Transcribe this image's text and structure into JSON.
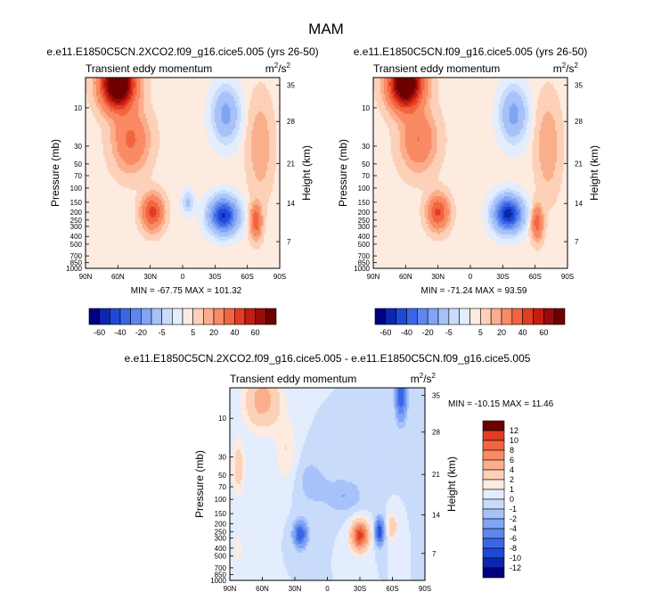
{
  "page_title": "MAM",
  "chart_data": [
    {
      "type": "heatmap",
      "title": "e.e11.E1850C5CN.2XCO2.f09_g16.cice5.005 (yrs 26-50)",
      "variable": "Transient eddy momentum",
      "units_base": "m",
      "units_exp1": "2",
      "units_mid": "/s",
      "units_exp2": "2",
      "xlabel": "",
      "ylabel": "Pressure (mb)",
      "ylabel_right": "Height (km)",
      "x_ticks": [
        "90N",
        "60N",
        "30N",
        "0",
        "30S",
        "60S",
        "90S"
      ],
      "y_ticks": [
        "10",
        "30",
        "50",
        "70",
        "100",
        "150",
        "200",
        "250",
        "300",
        "400",
        "500",
        "700",
        "850",
        "1000"
      ],
      "height_ticks": [
        "35",
        "28",
        "21",
        "14",
        "7"
      ],
      "min_label": "MIN = -67.75",
      "max_label": "MAX = 101.32",
      "min": -67.75,
      "max": 101.32,
      "blobs": [
        {
          "lat": -60,
          "p": 5,
          "amp": 95,
          "slat": 14,
          "slp": 0.65
        },
        {
          "lat": -48,
          "p": 25,
          "amp": 22,
          "slat": 15,
          "slp": 0.8
        },
        {
          "lat": -28,
          "p": 200,
          "amp": 34,
          "slat": 9,
          "slp": 0.45
        },
        {
          "lat": 38,
          "p": 220,
          "amp": -62,
          "slat": 12,
          "slp": 0.45
        },
        {
          "lat": 40,
          "p": 12,
          "amp": -24,
          "slat": 11,
          "slp": 0.7
        },
        {
          "lat": 68,
          "p": 260,
          "amp": 28,
          "slat": 5,
          "slp": 0.45
        },
        {
          "lat": 72,
          "p": 30,
          "amp": 10,
          "slat": 10,
          "slp": 1.2
        },
        {
          "lat": 5,
          "p": 150,
          "amp": -12,
          "slat": 5,
          "slp": 0.3
        }
      ]
    },
    {
      "type": "heatmap",
      "title": "e.e11.E1850C5CN.f09_g16.cice5.005 (yrs 26-50)",
      "variable": "Transient eddy momentum",
      "units_base": "m",
      "units_exp1": "2",
      "units_mid": "/s",
      "units_exp2": "2",
      "xlabel": "",
      "ylabel": "Pressure (mb)",
      "ylabel_right": "Height (km)",
      "x_ticks": [
        "90N",
        "60N",
        "30N",
        "0",
        "30S",
        "60S",
        "90S"
      ],
      "y_ticks": [
        "10",
        "30",
        "50",
        "70",
        "100",
        "150",
        "200",
        "250",
        "300",
        "400",
        "500",
        "700",
        "850",
        "1000"
      ],
      "height_ticks": [
        "35",
        "28",
        "21",
        "14",
        "7"
      ],
      "min_label": "MIN = -71.24",
      "max_label": "MAX = 93.59",
      "min": -71.24,
      "max": 93.59,
      "blobs": [
        {
          "lat": -60,
          "p": 5,
          "amp": 88,
          "slat": 14,
          "slp": 0.65
        },
        {
          "lat": -48,
          "p": 25,
          "amp": 20,
          "slat": 15,
          "slp": 0.8
        },
        {
          "lat": -30,
          "p": 200,
          "amp": 32,
          "slat": 9,
          "slp": 0.45
        },
        {
          "lat": 35,
          "p": 210,
          "amp": -66,
          "slat": 12,
          "slp": 0.45
        },
        {
          "lat": 40,
          "p": 12,
          "amp": -24,
          "slat": 11,
          "slp": 0.7
        },
        {
          "lat": 62,
          "p": 270,
          "amp": 26,
          "slat": 5,
          "slp": 0.45
        },
        {
          "lat": 72,
          "p": 30,
          "amp": 10,
          "slat": 10,
          "slp": 1.2
        }
      ]
    },
    {
      "type": "heatmap",
      "title": "e.e11.E1850C5CN.2XCO2.f09_g16.cice5.005 - e.e11.E1850C5CN.f09_g16.cice5.005",
      "variable": "Transient eddy momentum",
      "units_base": "m",
      "units_exp1": "2",
      "units_mid": "/s",
      "units_exp2": "2",
      "xlabel": "",
      "ylabel": "Pressure (mb)",
      "ylabel_right": "Height (km)",
      "x_ticks": [
        "90N",
        "60N",
        "30N",
        "0",
        "30S",
        "60S",
        "90S"
      ],
      "y_ticks": [
        "10",
        "30",
        "50",
        "70",
        "100",
        "150",
        "200",
        "250",
        "300",
        "400",
        "500",
        "700",
        "850",
        "1000"
      ],
      "height_ticks": [
        "35",
        "28",
        "21",
        "14",
        "7"
      ],
      "min_label": "MIN = -10.15",
      "max_label": "MAX = 11.46",
      "min": -10.15,
      "max": 11.46,
      "blobs": [
        {
          "lat": -60,
          "p": 6,
          "amp": 5,
          "slat": 16,
          "slp": 0.8
        },
        {
          "lat": -82,
          "p": 40,
          "amp": 3,
          "slat": 6,
          "slp": 0.8
        },
        {
          "lat": -38,
          "p": 25,
          "amp": 2,
          "slat": 10,
          "slp": 1.0
        },
        {
          "lat": -25,
          "p": 270,
          "amp": -8,
          "slat": 6,
          "slp": 0.35
        },
        {
          "lat": 30,
          "p": 280,
          "amp": 11,
          "slat": 8,
          "slp": 0.4
        },
        {
          "lat": 48,
          "p": 250,
          "amp": -9,
          "slat": 4,
          "slp": 0.35
        },
        {
          "lat": 60,
          "p": 220,
          "amp": 4,
          "slat": 4,
          "slp": 0.35
        },
        {
          "lat": 68,
          "p": 5,
          "amp": -8,
          "slat": 5,
          "slp": 0.7
        },
        {
          "lat": -82,
          "p": 400,
          "amp": 2,
          "slat": 4,
          "slp": 0.4
        },
        {
          "lat": 15,
          "p": 90,
          "amp": -2,
          "slat": 18,
          "slp": 0.5
        },
        {
          "lat": -15,
          "p": 60,
          "amp": -1.5,
          "slat": 15,
          "slp": 0.7
        }
      ]
    }
  ],
  "colorbar_top": {
    "labels": [
      "-60",
      "-40",
      "-20",
      "-5",
      "5",
      "20",
      "40",
      "60"
    ],
    "levels": [
      -70,
      -60,
      -50,
      -40,
      -30,
      -20,
      -10,
      -5,
      -1,
      1,
      5,
      10,
      20,
      30,
      40,
      50,
      60,
      70
    ]
  },
  "colorbar_diff": {
    "labels": [
      "12",
      "10",
      "8",
      "6",
      "4",
      "2",
      "1",
      "0",
      "-1",
      "-2",
      "-4",
      "-6",
      "-8",
      "-10",
      "-12"
    ],
    "levels": [
      -12,
      -10,
      -8,
      -6,
      -4,
      -2,
      -1,
      0,
      1,
      2,
      4,
      6,
      8,
      10,
      12
    ]
  },
  "palette": [
    "#000080",
    "#0b27b0",
    "#1e48d6",
    "#3a66e6",
    "#5d86ef",
    "#81a5f4",
    "#a6c2f8",
    "#c8dbfb",
    "#e3edfd",
    "#fdebe0",
    "#fcd1b8",
    "#fbae8c",
    "#f98a64",
    "#f26540",
    "#e13d22",
    "#c21d12",
    "#990b08",
    "#6e0000"
  ]
}
